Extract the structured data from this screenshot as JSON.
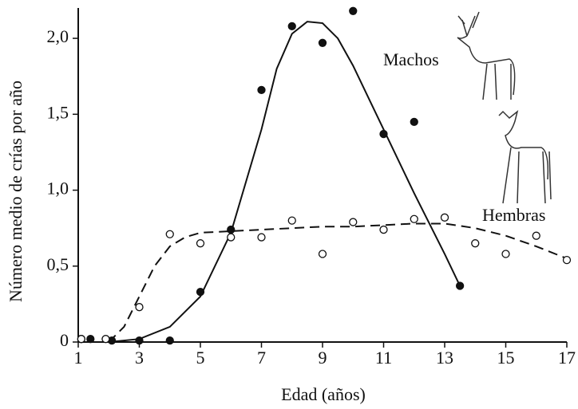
{
  "chart_data": {
    "type": "scatter",
    "xlabel": "Edad (años)",
    "ylabel": "Número medio de crías por año",
    "xlim": [
      1,
      17
    ],
    "xticks": [
      1,
      3,
      5,
      7,
      9,
      11,
      13,
      15,
      17
    ],
    "ylim": [
      0,
      2.2
    ],
    "yticks": [
      {
        "value": 0,
        "label": "0"
      },
      {
        "value": 0.5,
        "label": "0,5"
      },
      {
        "value": 1,
        "label": "1,0"
      },
      {
        "value": 1.5,
        "label": "1,5"
      },
      {
        "value": 2,
        "label": "2,0"
      }
    ],
    "series": [
      {
        "name": "Machos",
        "color": "#111111",
        "marker": "filled",
        "dash": "solid",
        "x": [
          1.1,
          1.4,
          2.1,
          3,
          4,
          5,
          6,
          7,
          8,
          9,
          10,
          11,
          12,
          13.5
        ],
        "values": [
          0.02,
          0.02,
          0.01,
          0.01,
          0.01,
          0.33,
          0.74,
          1.66,
          2.08,
          1.97,
          2.18,
          1.37,
          1.45,
          0.37
        ],
        "curve_x": [
          1,
          2,
          3,
          4,
          5,
          6,
          7,
          7.5,
          8,
          8.5,
          9,
          9.5,
          10,
          11,
          12,
          13,
          13.5
        ],
        "curve_values": [
          0,
          0,
          0.02,
          0.1,
          0.3,
          0.72,
          1.4,
          1.8,
          2.03,
          2.11,
          2.1,
          2.0,
          1.82,
          1.4,
          0.98,
          0.58,
          0.37
        ]
      },
      {
        "name": "Hembras",
        "color": "#111111",
        "marker": "open",
        "dash": "dashed",
        "x": [
          1.1,
          1.9,
          3,
          4,
          5,
          6,
          7,
          8,
          9,
          10,
          11,
          12,
          13,
          14,
          15,
          16,
          17
        ],
        "values": [
          0.02,
          0.02,
          0.23,
          0.71,
          0.65,
          0.69,
          0.69,
          0.8,
          0.58,
          0.79,
          0.74,
          0.81,
          0.82,
          0.65,
          0.58,
          0.7,
          0.54
        ],
        "curve_x": [
          2,
          2.5,
          3,
          3.5,
          4,
          4.5,
          5,
          6,
          7,
          8,
          9,
          10,
          11,
          12,
          13,
          14,
          15,
          16,
          17
        ],
        "curve_values": [
          0,
          0.1,
          0.3,
          0.5,
          0.63,
          0.69,
          0.72,
          0.73,
          0.74,
          0.75,
          0.76,
          0.76,
          0.77,
          0.78,
          0.78,
          0.75,
          0.7,
          0.63,
          0.55
        ]
      }
    ]
  }
}
